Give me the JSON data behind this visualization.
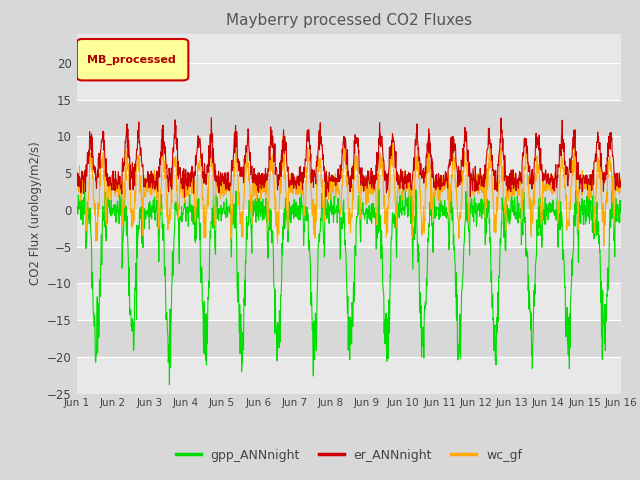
{
  "title": "Mayberry processed CO2 Fluxes",
  "ylabel": "CO2 Flux (urology/m2/s)",
  "legend_label": "MB_processed",
  "line_labels": [
    "gpp_ANNnight",
    "er_ANNnight",
    "wc_gf"
  ],
  "line_colors": [
    "#00dd00",
    "#cc0000",
    "#ffaa00"
  ],
  "ylim": [
    -25,
    22
  ],
  "yticks": [
    -25,
    -20,
    -15,
    -10,
    -5,
    0,
    5,
    10,
    15,
    20
  ],
  "background_color": "#d8d8d8",
  "plot_bg_color": "#e8e8e8",
  "band_colors": [
    "#e8e8e8",
    "#d8d8d8"
  ],
  "n_points_per_day": 96,
  "n_days": 15
}
